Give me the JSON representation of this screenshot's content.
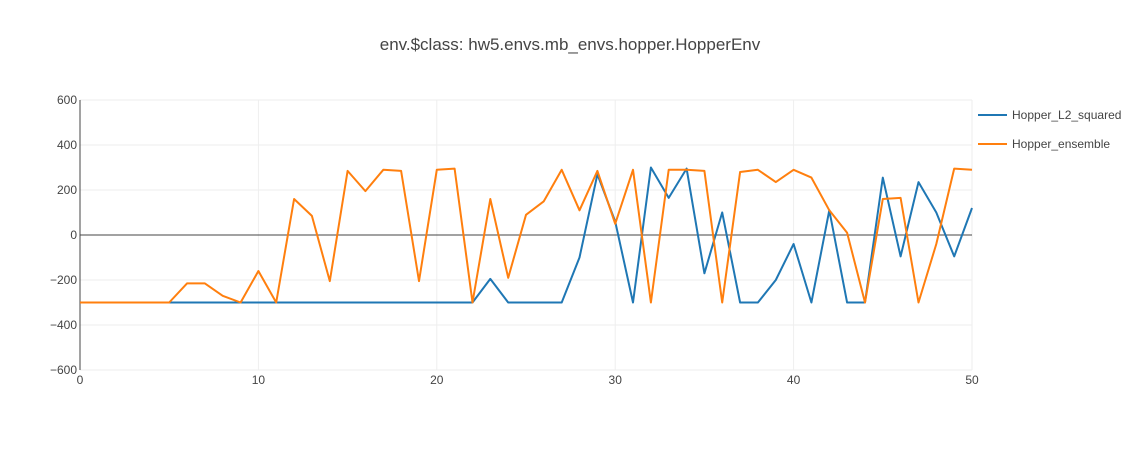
{
  "chart_data": {
    "type": "line",
    "title": "env.$class: hw5.envs.mb_envs.hopper.HopperEnv",
    "xlabel": "",
    "ylabel": "",
    "xlim": [
      0,
      50
    ],
    "ylim": [
      -600,
      600
    ],
    "xticks": [
      0,
      10,
      20,
      30,
      40,
      50
    ],
    "yticks": [
      -600,
      -400,
      -200,
      0,
      200,
      400,
      600
    ],
    "ytick_labels": [
      "−600",
      "−400",
      "−200",
      "0",
      "200",
      "400",
      "600"
    ],
    "grid": true,
    "legend_position": "top-right",
    "x": [
      0,
      1,
      2,
      3,
      4,
      5,
      6,
      7,
      8,
      9,
      10,
      11,
      12,
      13,
      14,
      15,
      16,
      17,
      18,
      19,
      20,
      21,
      22,
      23,
      24,
      25,
      26,
      27,
      28,
      29,
      30,
      31,
      32,
      33,
      34,
      35,
      36,
      37,
      38,
      39,
      40,
      41,
      42,
      43,
      44,
      45,
      46,
      47,
      48,
      49,
      50
    ],
    "series": [
      {
        "name": "Hopper_L2_squared",
        "color": "#1f77b4",
        "values": [
          -300,
          -300,
          -300,
          -300,
          -300,
          -300,
          -300,
          -300,
          -300,
          -300,
          -300,
          -300,
          -300,
          -300,
          -300,
          -300,
          -300,
          -300,
          -300,
          -300,
          -300,
          -300,
          -300,
          -195,
          -300,
          -300,
          -300,
          -300,
          -100,
          270,
          60,
          -300,
          300,
          165,
          295,
          -170,
          100,
          -300,
          -300,
          -200,
          -40,
          -300,
          110,
          -300,
          -300,
          255,
          -95,
          235,
          100,
          -95,
          120
        ]
      },
      {
        "name": "Hopper_ensemble",
        "color": "#ff7f0e",
        "values": [
          -300,
          -300,
          -300,
          -300,
          -300,
          -300,
          -215,
          -215,
          -270,
          -300,
          -160,
          -300,
          160,
          85,
          -205,
          285,
          195,
          290,
          285,
          -205,
          290,
          295,
          -300,
          160,
          -190,
          90,
          150,
          290,
          110,
          285,
          50,
          290,
          -300,
          290,
          290,
          285,
          -300,
          280,
          290,
          235,
          290,
          255,
          110,
          10,
          -300,
          160,
          165,
          -300,
          -40,
          295,
          290
        ]
      }
    ]
  }
}
